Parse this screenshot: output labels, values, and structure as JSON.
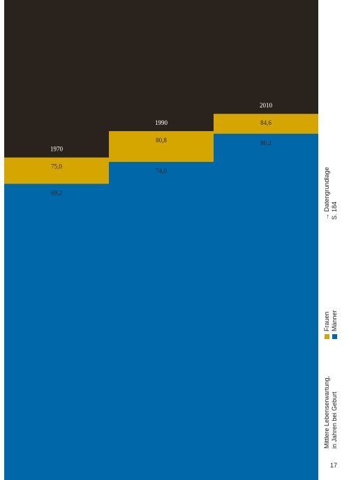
{
  "chart_data": {
    "type": "bar",
    "categories": [
      "1970",
      "1990",
      "2010"
    ],
    "series": [
      {
        "name": "Frauen",
        "color": "#d6a600",
        "values": [
          75.0,
          80.8,
          84.6
        ]
      },
      {
        "name": "Männer",
        "color": "#0068a8",
        "values": [
          69.2,
          74.0,
          80.2
        ]
      }
    ],
    "value_labels": {
      "Frauen": [
        "75,0",
        "80,8",
        "84,6"
      ],
      "Männer": [
        "69,2",
        "74,0",
        "80,2"
      ]
    },
    "title": "Mittlere Lebenserwartung,",
    "subtitle": "in Jahren bei Geburt",
    "background_color": "#2a221d",
    "grid": false
  },
  "sidebar": {
    "legend": [
      {
        "label": "Frauen",
        "color": "#d6a600"
      },
      {
        "label": "Männer",
        "color": "#0068a8"
      }
    ],
    "reference_line1": "→ Datengrundlage",
    "reference_line2": "S. 184"
  },
  "page_number": "17"
}
